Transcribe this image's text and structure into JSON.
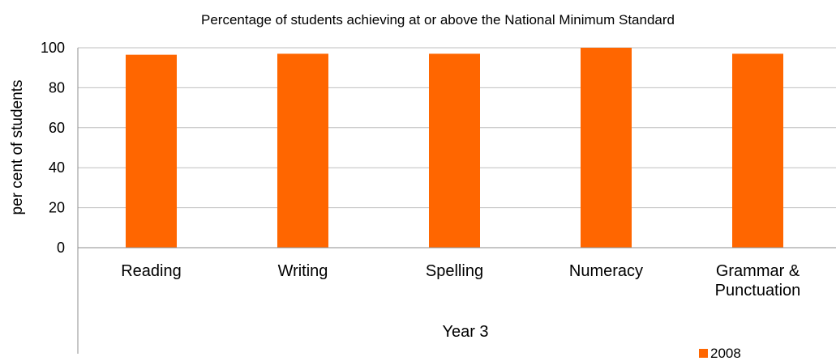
{
  "chart_data": {
    "type": "bar",
    "title": "Percentage of students achieving at or above the National Minimum Standard",
    "ylabel": "per cent of students",
    "xlabel": "",
    "group_label": "Year 3",
    "ylim": [
      0,
      100
    ],
    "yticks": [
      0,
      20,
      40,
      60,
      80,
      100
    ],
    "grid": true,
    "legend": "bottom-right",
    "categories": [
      [
        "Reading"
      ],
      [
        "Writing"
      ],
      [
        "Spelling"
      ],
      [
        "Numeracy"
      ],
      [
        "Grammar &",
        "Punctuation"
      ]
    ],
    "series": [
      {
        "name": "2008",
        "color": "#ff6600",
        "values": [
          96.5,
          97,
          97,
          100,
          97
        ]
      }
    ]
  }
}
